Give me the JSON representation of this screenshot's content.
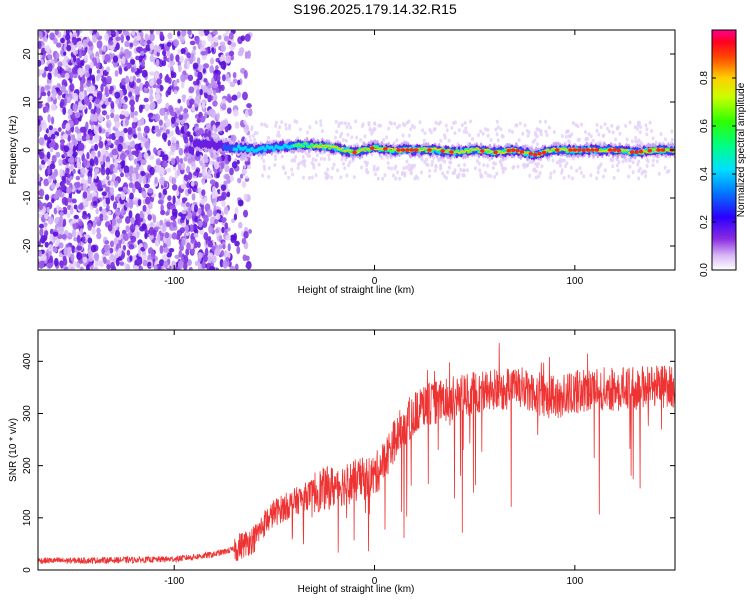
{
  "title": "S196.2025.179.14.32.R15",
  "colors": {
    "background": "#ffffff",
    "snr_line": "#ee3333",
    "axis": "#000000"
  },
  "chart_data": [
    {
      "type": "heatmap",
      "title": "",
      "xlabel": "Height of straight line (km)",
      "ylabel": "Frequency (Hz)",
      "xlim": [
        -168,
        150
      ],
      "ylim": [
        -25,
        25
      ],
      "x_ticks": [
        -100,
        0,
        100
      ],
      "y_ticks": [
        -20,
        -10,
        0,
        10,
        20
      ],
      "grid": false,
      "colorbar": {
        "label": "Normalized spectral amplitude",
        "range": [
          0,
          1
        ],
        "ticks": [
          "0.0",
          "0.2",
          "0.4",
          "0.6",
          "0.8"
        ],
        "colormap": "rainbow"
      },
      "ridge": {
        "x": [
          -90,
          -80,
          -70,
          -60,
          -50,
          -40,
          -30,
          -20,
          -10,
          0,
          10,
          20,
          30,
          40,
          50,
          60,
          70,
          80,
          90,
          100,
          110,
          120,
          130,
          140,
          150
        ],
        "frequency": [
          1.5,
          1,
          0.5,
          0,
          0.5,
          1,
          1,
          0.5,
          -0.5,
          0.5,
          0,
          0,
          0,
          -0.5,
          0,
          -0.5,
          0,
          -1,
          0,
          0,
          0,
          0,
          -0.5,
          0,
          0
        ]
      }
    },
    {
      "type": "line",
      "title": "",
      "xlabel": "Height of straight line (km)",
      "ylabel": "SNR (10 * v/v)",
      "xlim": [
        -168,
        150
      ],
      "ylim": [
        0,
        460
      ],
      "x_ticks": [
        -100,
        0,
        100
      ],
      "y_ticks": [
        0,
        100,
        200,
        300,
        400
      ],
      "grid": false,
      "series": [
        {
          "x": [
            -168,
            -150,
            -130,
            -110,
            -100,
            -90,
            -80,
            -70,
            -60,
            -55,
            -50,
            -40,
            -30,
            -20,
            -10,
            0,
            5,
            10,
            15,
            20,
            25,
            30,
            40,
            50,
            60,
            70,
            80,
            90,
            100,
            110,
            120,
            130,
            140,
            150
          ],
          "values": [
            18,
            18,
            19,
            20,
            21,
            25,
            30,
            40,
            60,
            90,
            110,
            130,
            150,
            160,
            170,
            180,
            210,
            250,
            280,
            300,
            315,
            320,
            330,
            340,
            345,
            350,
            340,
            330,
            340,
            350,
            345,
            350,
            355,
            350
          ]
        }
      ]
    }
  ]
}
